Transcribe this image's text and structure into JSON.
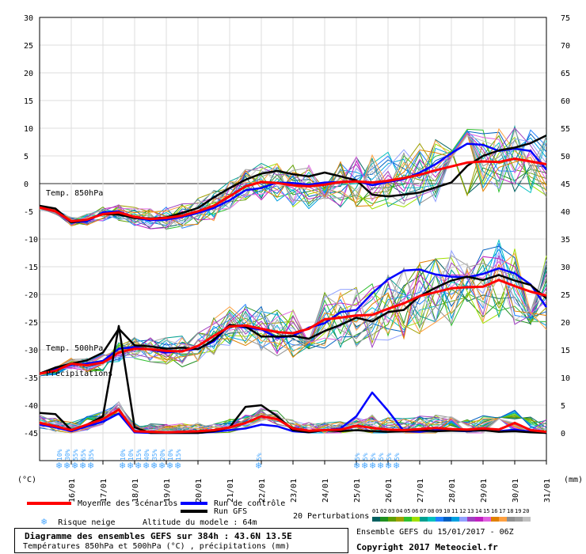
{
  "chart_data": {
    "type": "line",
    "title": "Diagramme des ensembles GEFS sur 384h : 43.6N 13.5E",
    "subtitle": "Températures 850hPa et 500hPa (°C) , précipitations (mm)",
    "left_axis": {
      "label": "(°C)",
      "ticks": [
        30,
        25,
        20,
        15,
        10,
        5,
        0,
        -5,
        -10,
        -15,
        -20,
        -25,
        -30,
        -35,
        -40,
        -45
      ]
    },
    "right_axis": {
      "label": "(mm)",
      "ticks": [
        75,
        70,
        65,
        60,
        55,
        50,
        45,
        40,
        35,
        30,
        25,
        20,
        15,
        10,
        5,
        0
      ]
    },
    "x_ticks": [
      "16/01",
      "17/01",
      "18/01",
      "19/01",
      "20/01",
      "21/01",
      "22/01",
      "23/01",
      "24/01",
      "25/01",
      "26/01",
      "27/01",
      "28/01",
      "29/01",
      "30/01",
      "31/01"
    ],
    "panel_labels": {
      "t850": "Temp. 850hPa",
      "t500": "Temp. 500hPa",
      "precip": "Précipitations"
    },
    "snow_risk_groups": [
      {
        "day": 15.6,
        "labels": [
          "10%",
          "30%",
          "55%",
          "65%",
          "35%"
        ]
      },
      {
        "day": 17.6,
        "labels": [
          "10%",
          "10%",
          "15%",
          "40%",
          "35%",
          "20%",
          "10%",
          "15%"
        ]
      },
      {
        "day": 21.9,
        "labels": [
          "5%"
        ]
      },
      {
        "day": 25.0,
        "labels": [
          "5%",
          "5%",
          "5%",
          "5%",
          "5%",
          "5%"
        ]
      }
    ],
    "x_days": [
      15.0,
      15.5,
      16.0,
      16.5,
      17.0,
      17.5,
      18.0,
      18.5,
      19.0,
      19.5,
      20.0,
      20.5,
      21.0,
      21.5,
      22.0,
      22.5,
      23.0,
      23.5,
      24.0,
      24.5,
      25.0,
      25.5,
      26.0,
      26.5,
      27.0,
      27.5,
      28.0,
      28.5,
      29.0,
      29.5,
      30.0,
      30.5,
      31.0
    ],
    "series": [
      {
        "name": "Moyenne des scénarios",
        "color": "#ff0000",
        "role": "t850",
        "values": [
          -4.3,
          -5,
          -6.8,
          -6.5,
          -5.5,
          -5.2,
          -6,
          -6.4,
          -6.2,
          -5.8,
          -5,
          -4,
          -2.3,
          -0.5,
          0.3,
          0.1,
          -0.3,
          -0.5,
          -0.2,
          0.3,
          0.4,
          0.2,
          0.5,
          1,
          1.6,
          2.4,
          3.1,
          3.8,
          4,
          3.9,
          4.5,
          4,
          3.5
        ]
      },
      {
        "name": "Run de contrôle",
        "color": "#0000ff",
        "role": "t850",
        "values": [
          -4.3,
          -5,
          -7,
          -6.8,
          -5.2,
          -5,
          -6.2,
          -6.6,
          -6.5,
          -6,
          -5.3,
          -4.4,
          -3,
          -1.2,
          -0.8,
          0.2,
          0.1,
          -0.2,
          0.2,
          0.3,
          0.5,
          -0.3,
          0.3,
          0.8,
          2,
          3.5,
          5.5,
          7.2,
          7,
          5.9,
          6.3,
          5.9,
          2.5
        ]
      },
      {
        "name": "Run GFS",
        "color": "#000000",
        "role": "t850",
        "values": [
          -4,
          -4.5,
          -7,
          -6.5,
          -5.5,
          -5.6,
          -6.2,
          -6.3,
          -6.1,
          -5.3,
          -4.4,
          -2.5,
          -0.8,
          0.7,
          1.8,
          2.3,
          1.7,
          1.3,
          2,
          1.3,
          0.6,
          -2,
          -2.3,
          -2,
          -1.6,
          -0.7,
          0.2,
          3.2,
          5,
          6,
          6.5,
          7.3,
          8.7
        ]
      },
      {
        "name": "Moyenne des scénarios",
        "color": "#ff0000",
        "role": "t500",
        "values": [
          -34.3,
          -33.8,
          -32.5,
          -32.8,
          -32.3,
          -30.5,
          -29.8,
          -29.9,
          -30.2,
          -30.3,
          -29.3,
          -27.5,
          -25.8,
          -25.6,
          -26.2,
          -26.8,
          -27,
          -26.2,
          -24.5,
          -24.2,
          -23.8,
          -23.7,
          -22.6,
          -21.6,
          -20.3,
          -19.6,
          -18.9,
          -18.7,
          -18.6,
          -17.4,
          -18.5,
          -19.5,
          -20.2
        ]
      },
      {
        "name": "Run de contrôle",
        "color": "#0000ff",
        "role": "t500",
        "values": [
          -34.3,
          -33.5,
          -32.7,
          -32.5,
          -32,
          -29.8,
          -29.5,
          -30,
          -30.5,
          -30.2,
          -29.8,
          -28.5,
          -25.5,
          -26,
          -26.3,
          -27.8,
          -27.5,
          -26,
          -25.2,
          -23.2,
          -22.8,
          -19.8,
          -17.3,
          -15.7,
          -15.5,
          -16.4,
          -16.8,
          -16.9,
          -16.3,
          -15.3,
          -16.2,
          -18.2,
          -22.3
        ]
      },
      {
        "name": "Run GFS",
        "color": "#000000",
        "role": "t500",
        "values": [
          -34.3,
          -33.2,
          -32.5,
          -31.9,
          -30.5,
          -26.2,
          -29.2,
          -29.4,
          -29.8,
          -29.6,
          -29.9,
          -28.2,
          -25.5,
          -25.8,
          -27.6,
          -27.6,
          -27.5,
          -28,
          -26.6,
          -25.5,
          -24.2,
          -24.9,
          -23.2,
          -22.8,
          -20.3,
          -18.8,
          -17.5,
          -16.8,
          -17.4,
          -16.5,
          -17.5,
          -18.3,
          -20.7
        ]
      },
      {
        "name": "Moyenne des scénarios",
        "color": "#ff0000",
        "role": "precip",
        "values": [
          1.8,
          1.2,
          0.5,
          1.5,
          2.5,
          4.2,
          0.3,
          0.2,
          0.1,
          0.2,
          0.3,
          0.5,
          1,
          1.8,
          3,
          2.5,
          0.8,
          0.4,
          0.5,
          0.6,
          1.3,
          0.9,
          0.6,
          0.5,
          0.7,
          0.9,
          0.7,
          0.6,
          0.8,
          0.6,
          1.8,
          0.5,
          0.2
        ]
      },
      {
        "name": "Run de contrôle",
        "color": "#0000ff",
        "role": "precip",
        "values": [
          1.5,
          1,
          0.3,
          1.2,
          2,
          3.5,
          0.1,
          0,
          0,
          0,
          0,
          0.2,
          0.5,
          0.8,
          1.5,
          1.2,
          0.3,
          0.1,
          0.5,
          0.8,
          3,
          7.3,
          4,
          0.3,
          0.2,
          0.5,
          0.4,
          0.3,
          0.5,
          0.3,
          0.6,
          0.2,
          0
        ]
      },
      {
        "name": "Run GFS",
        "color": "#000000",
        "role": "precip",
        "values": [
          3.6,
          3.4,
          0.5,
          1.5,
          3,
          19.3,
          1,
          0,
          0,
          0,
          0,
          0.3,
          1,
          4.7,
          5,
          3,
          0.5,
          0.1,
          0.5,
          0.3,
          0.5,
          0.3,
          0.2,
          0.3,
          0.5,
          0.3,
          0.4,
          0.4,
          0.5,
          0.2,
          0.3,
          0.1,
          0
        ]
      }
    ]
  },
  "legend": {
    "mean": "Moyenne des scénarios",
    "control": "Run de contrôle",
    "gfs": "Run GFS",
    "perturbations": "20 Perturbations",
    "snow": "Risque neige",
    "altitude": "Altitude du modele : 64m",
    "pert_numbers": [
      "01",
      "02",
      "03",
      "04",
      "05",
      "06",
      "07",
      "08",
      "09",
      "10",
      "11",
      "12",
      "13",
      "14",
      "15",
      "16",
      "17",
      "18",
      "19",
      "20"
    ],
    "pert_colors": [
      "#006060",
      "#209020",
      "#60a000",
      "#a0a000",
      "#30c030",
      "#a0e000",
      "#00a090",
      "#00c0c0",
      "#2080ff",
      "#0060c0",
      "#00a0e0",
      "#90a0ff",
      "#a040c0",
      "#c020c0",
      "#e060e0",
      "#e08000",
      "#ffa040",
      "#909090",
      "#a0a0a0",
      "#c0c0c0"
    ]
  },
  "footer": {
    "title": "Diagramme des ensembles GEFS sur 384h : 43.6N 13.5E",
    "subtitle": "Températures 850hPa et 500hPa (°C) , précipitations (mm)",
    "run": "Ensemble GEFS du 15/01/2017 - 06Z",
    "copyright": "Copyright 2017 Meteociel.fr"
  },
  "colors": {
    "mean": "#ff0000",
    "control": "#0000ff",
    "gfs": "#000000",
    "snow": "#4aa8ff"
  }
}
